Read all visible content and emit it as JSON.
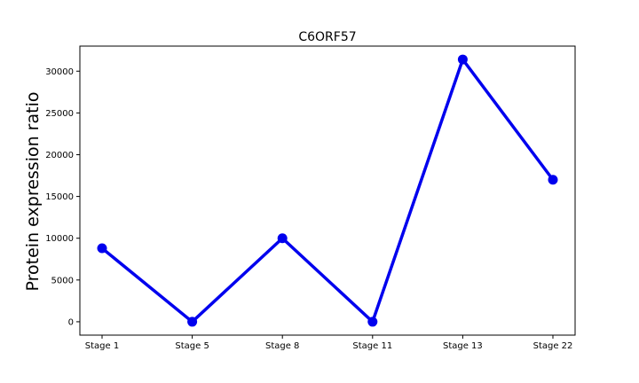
{
  "chart_data": {
    "type": "line",
    "title": "C6ORF57",
    "xlabel": "",
    "ylabel": "Protein expression ratio",
    "categories": [
      "Stage 1",
      "Stage 5",
      "Stage 8",
      "Stage 11",
      "Stage 13",
      "Stage 22"
    ],
    "series": [
      {
        "values": [
          8800,
          0,
          10000,
          0,
          31400,
          17000
        ],
        "color": "#0000ee"
      }
    ],
    "ylim": [
      -1600,
      33000
    ],
    "yticks": [
      0,
      5000,
      10000,
      15000,
      20000,
      25000,
      30000
    ],
    "grid": false,
    "legend": "none"
  }
}
